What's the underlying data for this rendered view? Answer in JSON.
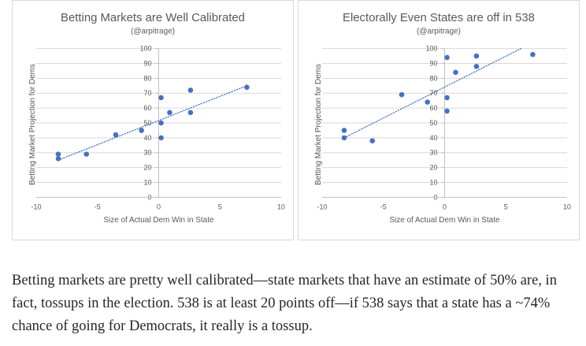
{
  "chart_data": [
    {
      "type": "scatter",
      "title": "Betting Markets are Well Calibrated",
      "subtitle": "(@arpitrage)",
      "xlabel": "Size of Actual Dem Win in State",
      "ylabel": "Betting Market Projection for Dems",
      "xlim": [
        -10,
        10
      ],
      "ylim": [
        0,
        100
      ],
      "x_ticks": [
        -10,
        -5,
        0,
        5,
        10
      ],
      "y_ticks": [
        0,
        10,
        20,
        30,
        40,
        50,
        60,
        70,
        80,
        90,
        100
      ],
      "grid": "horizontal",
      "trendline": {
        "style": "dotted",
        "x": [
          -8.2,
          7.2
        ],
        "y": [
          25,
          75
        ]
      },
      "points": [
        {
          "x": -8.2,
          "y": 29
        },
        {
          "x": -8.2,
          "y": 26
        },
        {
          "x": -5.9,
          "y": 29
        },
        {
          "x": -3.5,
          "y": 42
        },
        {
          "x": -1.4,
          "y": 45
        },
        {
          "x": 0.2,
          "y": 67
        },
        {
          "x": 0.2,
          "y": 50
        },
        {
          "x": 0.2,
          "y": 40
        },
        {
          "x": 0.9,
          "y": 57
        },
        {
          "x": 2.6,
          "y": 72
        },
        {
          "x": 2.6,
          "y": 57
        },
        {
          "x": 7.2,
          "y": 74
        }
      ],
      "colors": {
        "points": "#4472c4",
        "trendline": "#4472c4",
        "grid": "#d9d9d9"
      }
    },
    {
      "type": "scatter",
      "title": "Electorally Even States are off in 538",
      "subtitle": "(@arpitrage)",
      "xlabel": "Size of Actual Dem Win in State",
      "ylabel": "Betting Market Projection for Dems",
      "xlim": [
        -10,
        10
      ],
      "ylim": [
        0,
        100
      ],
      "x_ticks": [
        -10,
        -5,
        0,
        5,
        10
      ],
      "y_ticks": [
        0,
        10,
        20,
        30,
        40,
        50,
        60,
        70,
        80,
        90,
        100
      ],
      "grid": "horizontal",
      "trendline": {
        "style": "dotted",
        "x": [
          -8.2,
          7.2
        ],
        "y": [
          40,
          104
        ]
      },
      "points": [
        {
          "x": -8.2,
          "y": 45
        },
        {
          "x": -8.2,
          "y": 40
        },
        {
          "x": -5.9,
          "y": 38
        },
        {
          "x": -3.5,
          "y": 69
        },
        {
          "x": -1.4,
          "y": 64
        },
        {
          "x": 0.2,
          "y": 94
        },
        {
          "x": 0.2,
          "y": 67
        },
        {
          "x": 0.2,
          "y": 58
        },
        {
          "x": 0.9,
          "y": 84
        },
        {
          "x": 2.6,
          "y": 95
        },
        {
          "x": 2.6,
          "y": 88
        },
        {
          "x": 7.2,
          "y": 96
        }
      ],
      "colors": {
        "points": "#4472c4",
        "trendline": "#4472c4",
        "grid": "#d9d9d9"
      }
    }
  ],
  "caption": "Betting markets are pretty well calibrated—state markets that have an estimate of 50% are, in fact, tossups in the election. 538 is at least 20 points off—if 538 says that a state has a ~74% chance of going for Democrats, it really is a tossup."
}
